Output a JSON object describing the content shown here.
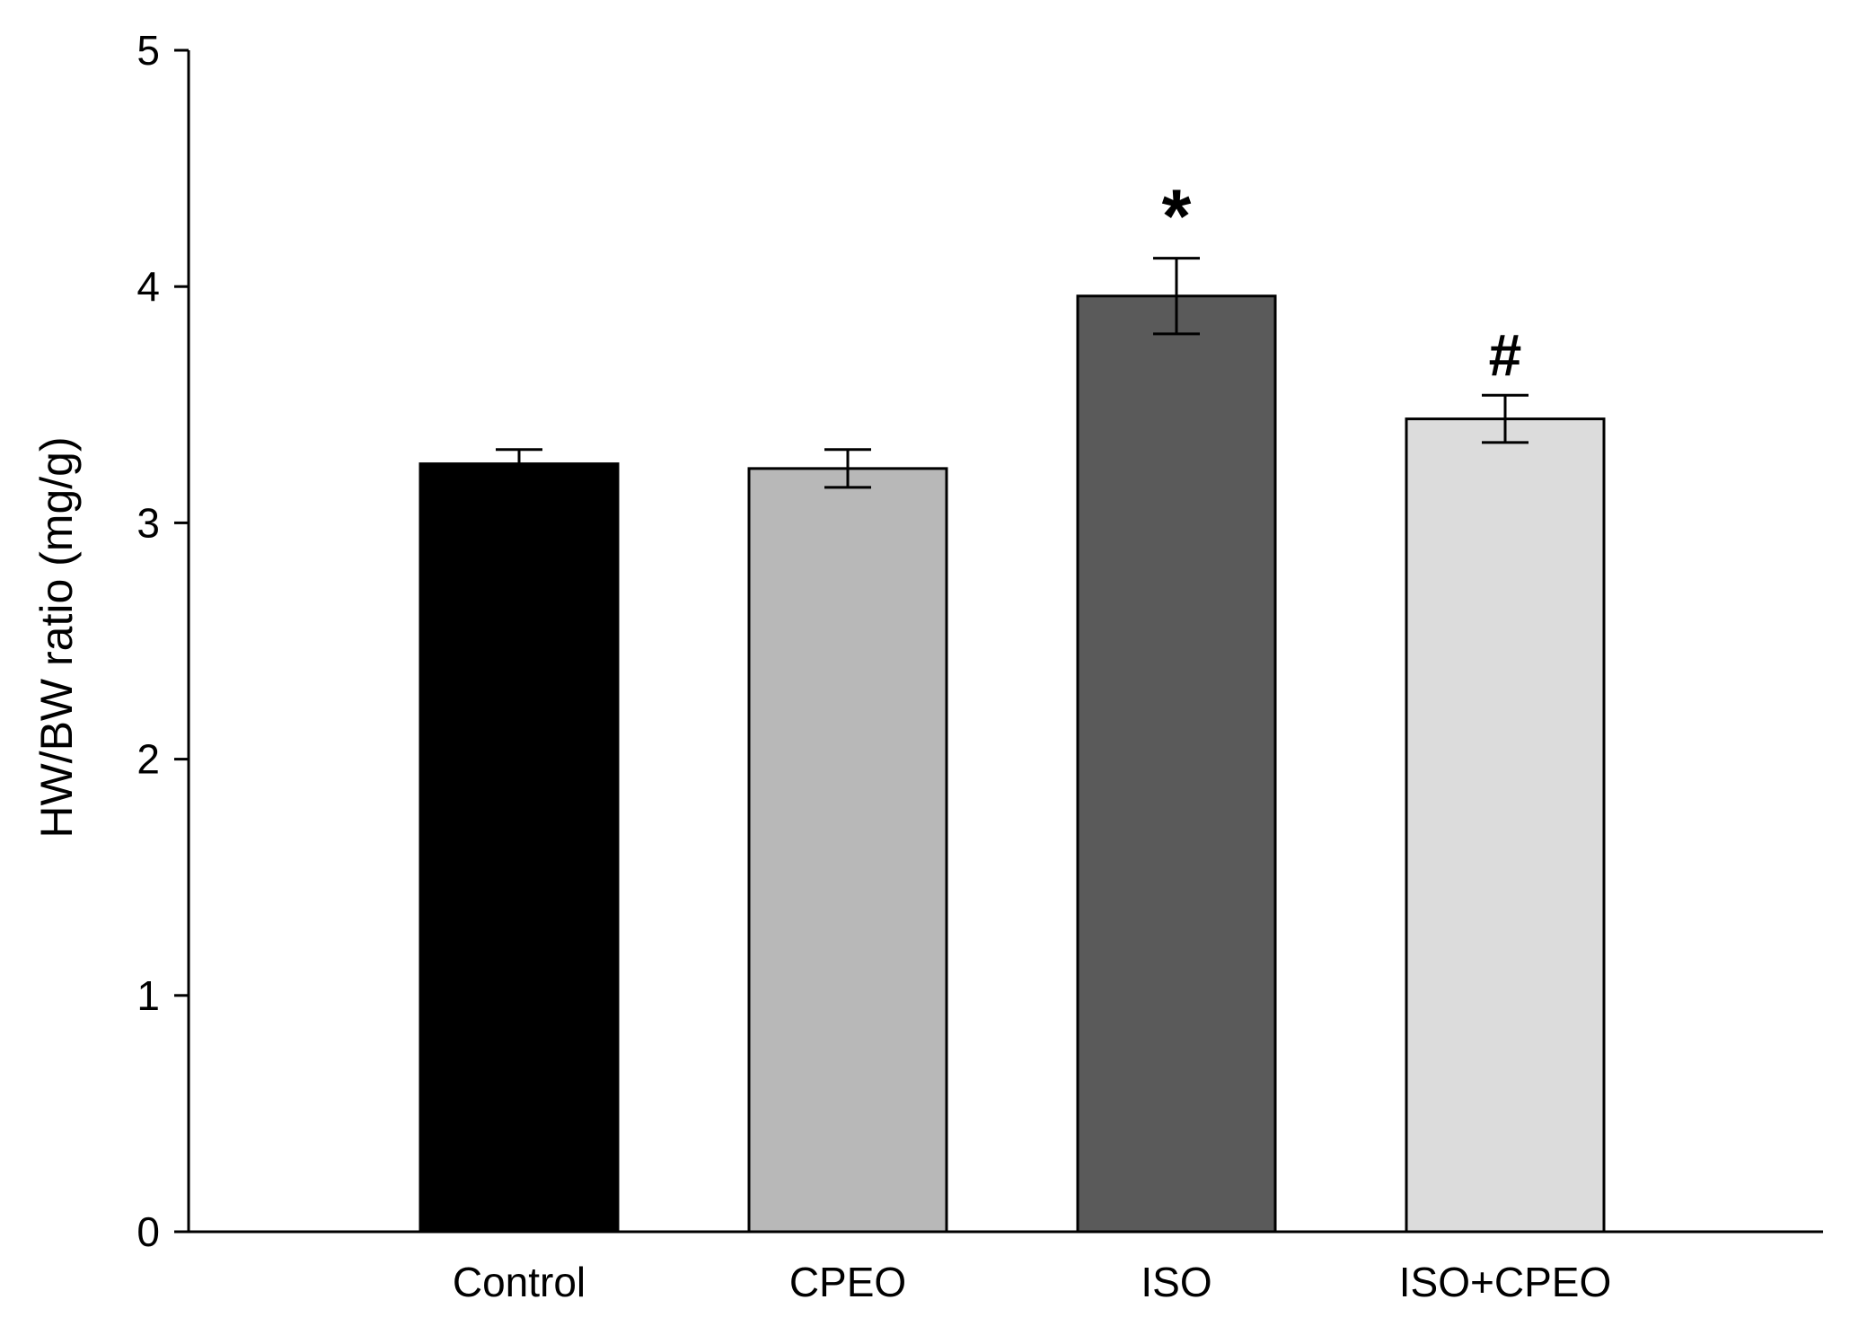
{
  "chart_data": {
    "type": "bar",
    "title": "",
    "xlabel": "",
    "ylabel": "HW/BW ratio (mg/g)",
    "ylim": [
      0,
      5
    ],
    "yticks": [
      "0",
      "1",
      "2",
      "3",
      "4",
      "5"
    ],
    "categories": [
      "Control",
      "CPEO",
      "ISO",
      "ISO+CPEO"
    ],
    "values": [
      3.25,
      3.23,
      3.96,
      3.44
    ],
    "errors": [
      0.06,
      0.08,
      0.16,
      0.1
    ],
    "significance": [
      "",
      "",
      "*",
      "#"
    ],
    "colors": [
      "#000000",
      "#b8b8b8",
      "#5a5a5a",
      "#dcdcdc"
    ],
    "grid": false,
    "legend": "none"
  }
}
